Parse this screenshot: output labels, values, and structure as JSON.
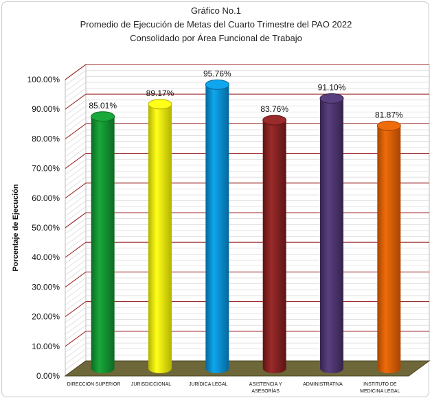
{
  "chart_data": {
    "type": "bar",
    "title": "Gráfico No.1",
    "subtitle": "Promedio de Ejecución de Metas del Cuarto Trimestre del PAO 2022",
    "subtitle2": "Consolidado por Área Funcional de Trabajo",
    "xlabel": "",
    "ylabel": "Porcentaje de Ejecución",
    "ylim": [
      0,
      100
    ],
    "ytick_step": 10,
    "y_ticks": [
      "0.00%",
      "10.00%",
      "20.00%",
      "30.00%",
      "40.00%",
      "50.00%",
      "60.00%",
      "70.00%",
      "80.00%",
      "90.00%",
      "100.00%"
    ],
    "categories": [
      [
        "DIRECCIÓN SUPERIOR"
      ],
      [
        "JURISDICCIONAL"
      ],
      [
        "JURÍDICA LEGAL"
      ],
      [
        "ASISTENCIA Y",
        "ASESORÍAS"
      ],
      [
        "ADMINISTRATIVA"
      ],
      [
        "INSTITUTO DE",
        "MEDICINA LEGAL"
      ]
    ],
    "values": [
      85.01,
      89.17,
      95.76,
      83.76,
      91.1,
      81.87
    ],
    "data_labels": [
      "85.01%",
      "89.17%",
      "95.76%",
      "83.76%",
      "91.10%",
      "81.87%"
    ],
    "bar_colors": [
      "#19a83a",
      "#ffff1a",
      "#0ea7ee",
      "#9b2a2a",
      "#5a3f80",
      "#ee6c0a"
    ],
    "bar_shade": [
      "#0c6b24",
      "#b3b300",
      "#06679b",
      "#5e1515",
      "#35244d",
      "#a84503"
    ],
    "grid": true,
    "gridline_color": "#9b2a2a",
    "floor_color": "#6e6739",
    "legend": "none"
  }
}
